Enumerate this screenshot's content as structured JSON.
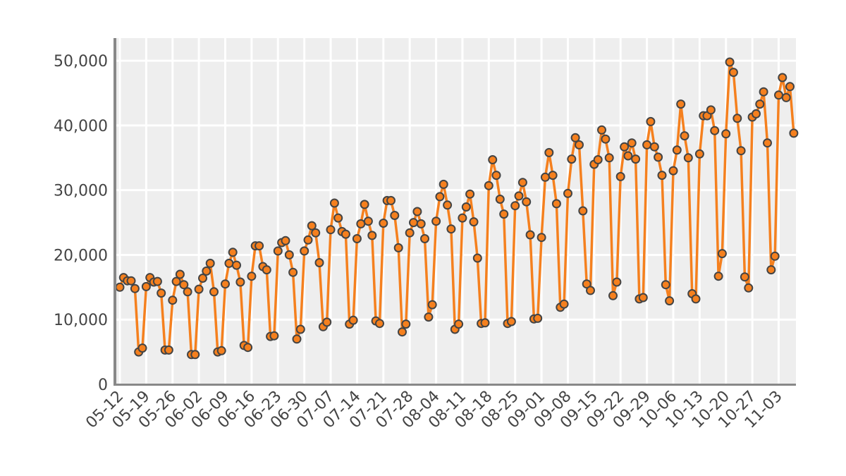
{
  "chart_data": {
    "type": "line",
    "title": "",
    "xlabel": "",
    "ylabel": "",
    "ylim": [
      0,
      53500
    ],
    "yticks": [
      0,
      10000,
      20000,
      30000,
      40000,
      50000
    ],
    "ytick_labels": [
      "0",
      "10,000",
      "20,000",
      "30,000",
      "40,000",
      "50,000"
    ],
    "xtick_labels": [
      "05-12",
      "05-19",
      "05-26",
      "06-02",
      "06-09",
      "06-16",
      "06-23",
      "06-30",
      "07-07",
      "07-14",
      "07-21",
      "07-28",
      "08-04",
      "08-11",
      "08-18",
      "08-25",
      "09-01",
      "09-08",
      "09-15",
      "09-22",
      "09-29",
      "10-06",
      "10-13",
      "10-20",
      "10-27",
      "11-03"
    ],
    "grid": true,
    "colors": {
      "line": "#f5801e",
      "marker_fill": "#f5801e",
      "marker_edge": "#444444",
      "plot_bg": "#eeeeee",
      "grid": "#ffffff",
      "axis": "#888888"
    },
    "series": [
      {
        "values": [
          15000,
          16500,
          16000,
          16000,
          14800,
          5000,
          5600,
          15100,
          16500,
          15800,
          15900,
          14100,
          5300,
          5300,
          13000,
          15900,
          17000,
          15400,
          14300,
          4600,
          4600,
          14700,
          16400,
          17500,
          18700,
          14300,
          5000,
          5200,
          15500,
          18700,
          20400,
          18400,
          15800,
          6000,
          5700,
          16700,
          21400,
          21400,
          18200,
          17700,
          7400,
          7500,
          20600,
          21900,
          22200,
          20000,
          17300,
          7000,
          8500,
          20600,
          22300,
          24500,
          23400,
          18800,
          8900,
          9600,
          23900,
          28000,
          25700,
          23600,
          23200,
          9300,
          9900,
          22500,
          24800,
          27800,
          25200,
          23000,
          9800,
          9400,
          24900,
          28400,
          28400,
          26100,
          21100,
          8100,
          9300,
          23400,
          25000,
          26700,
          24800,
          22500,
          10400,
          12300,
          25200,
          29000,
          30900,
          27700,
          24000,
          8500,
          9300,
          25700,
          27400,
          29400,
          25100,
          19500,
          9400,
          9500,
          30700,
          34700,
          32300,
          28600,
          26300,
          9400,
          9700,
          27600,
          29100,
          31200,
          28200,
          23100,
          10100,
          10200,
          22700,
          32000,
          35800,
          32300,
          27900,
          11900,
          12400,
          29500,
          34800,
          38100,
          37000,
          26800,
          15500,
          14500,
          34000,
          34700,
          39300,
          37900,
          35000,
          13700,
          15800,
          32100,
          36700,
          35300,
          37300,
          34800,
          13200,
          13400,
          37000,
          40600,
          36700,
          35100,
          32300,
          15400,
          12900,
          33000,
          36200,
          43300,
          38400,
          35000,
          14000,
          13200,
          35600,
          41500,
          41500,
          42400,
          39200,
          16700,
          20200,
          38700,
          49800,
          48200,
          41100,
          36100,
          16600,
          14900,
          41300,
          41800,
          43300,
          45200,
          37300,
          17700,
          19800,
          44700,
          47400,
          44300,
          46000,
          38800
        ]
      }
    ]
  }
}
